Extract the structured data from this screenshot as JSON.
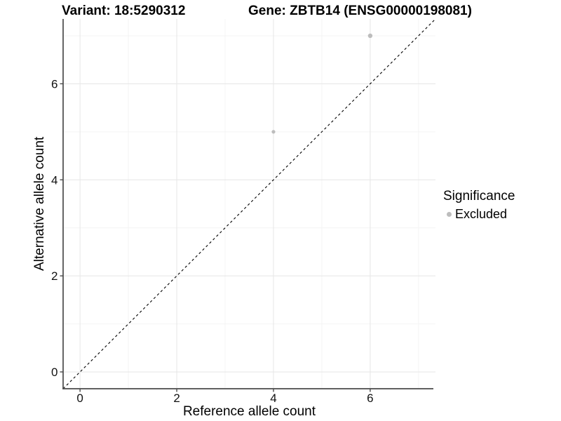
{
  "chart_data": {
    "type": "scatter",
    "titles": {
      "left": "Variant: 18:5290312",
      "right": "Gene: ZBTB14 (ENSG00000198081)"
    },
    "xlabel": "Reference allele count",
    "ylabel": "Alternative allele count",
    "xlim": [
      -0.35,
      7.35
    ],
    "ylim": [
      -0.35,
      7.35
    ],
    "x_major_ticks": [
      0,
      2,
      4,
      6
    ],
    "y_major_ticks": [
      0,
      2,
      4,
      6
    ],
    "x_minor_ticks": [
      1,
      3,
      5,
      7
    ],
    "y_minor_ticks": [
      1,
      3,
      5,
      7
    ],
    "grid": true,
    "identity_line": {
      "style": "dashed",
      "from": [
        -0.35,
        -0.35
      ],
      "to": [
        7.35,
        7.35
      ],
      "color": "#000000"
    },
    "series": [
      {
        "name": "Excluded",
        "color": "#bdbdbd",
        "points": [
          {
            "x": 4,
            "y": 5,
            "r": 2.6
          },
          {
            "x": 6,
            "y": 7,
            "r": 3.2
          }
        ]
      }
    ],
    "legend": {
      "title": "Significance",
      "position": "right",
      "entries": [
        {
          "label": "Excluded",
          "color": "#bdbdbd"
        }
      ]
    }
  },
  "colors": {
    "background": "#ffffff",
    "grid_major": "#e8e8e8",
    "grid_minor": "#f4f4f4",
    "axis_line": "#4a4a4a",
    "tick_label": "#111111",
    "title_text": "#000000",
    "point": "#bdbdbd",
    "dashed_line": "#000000"
  }
}
